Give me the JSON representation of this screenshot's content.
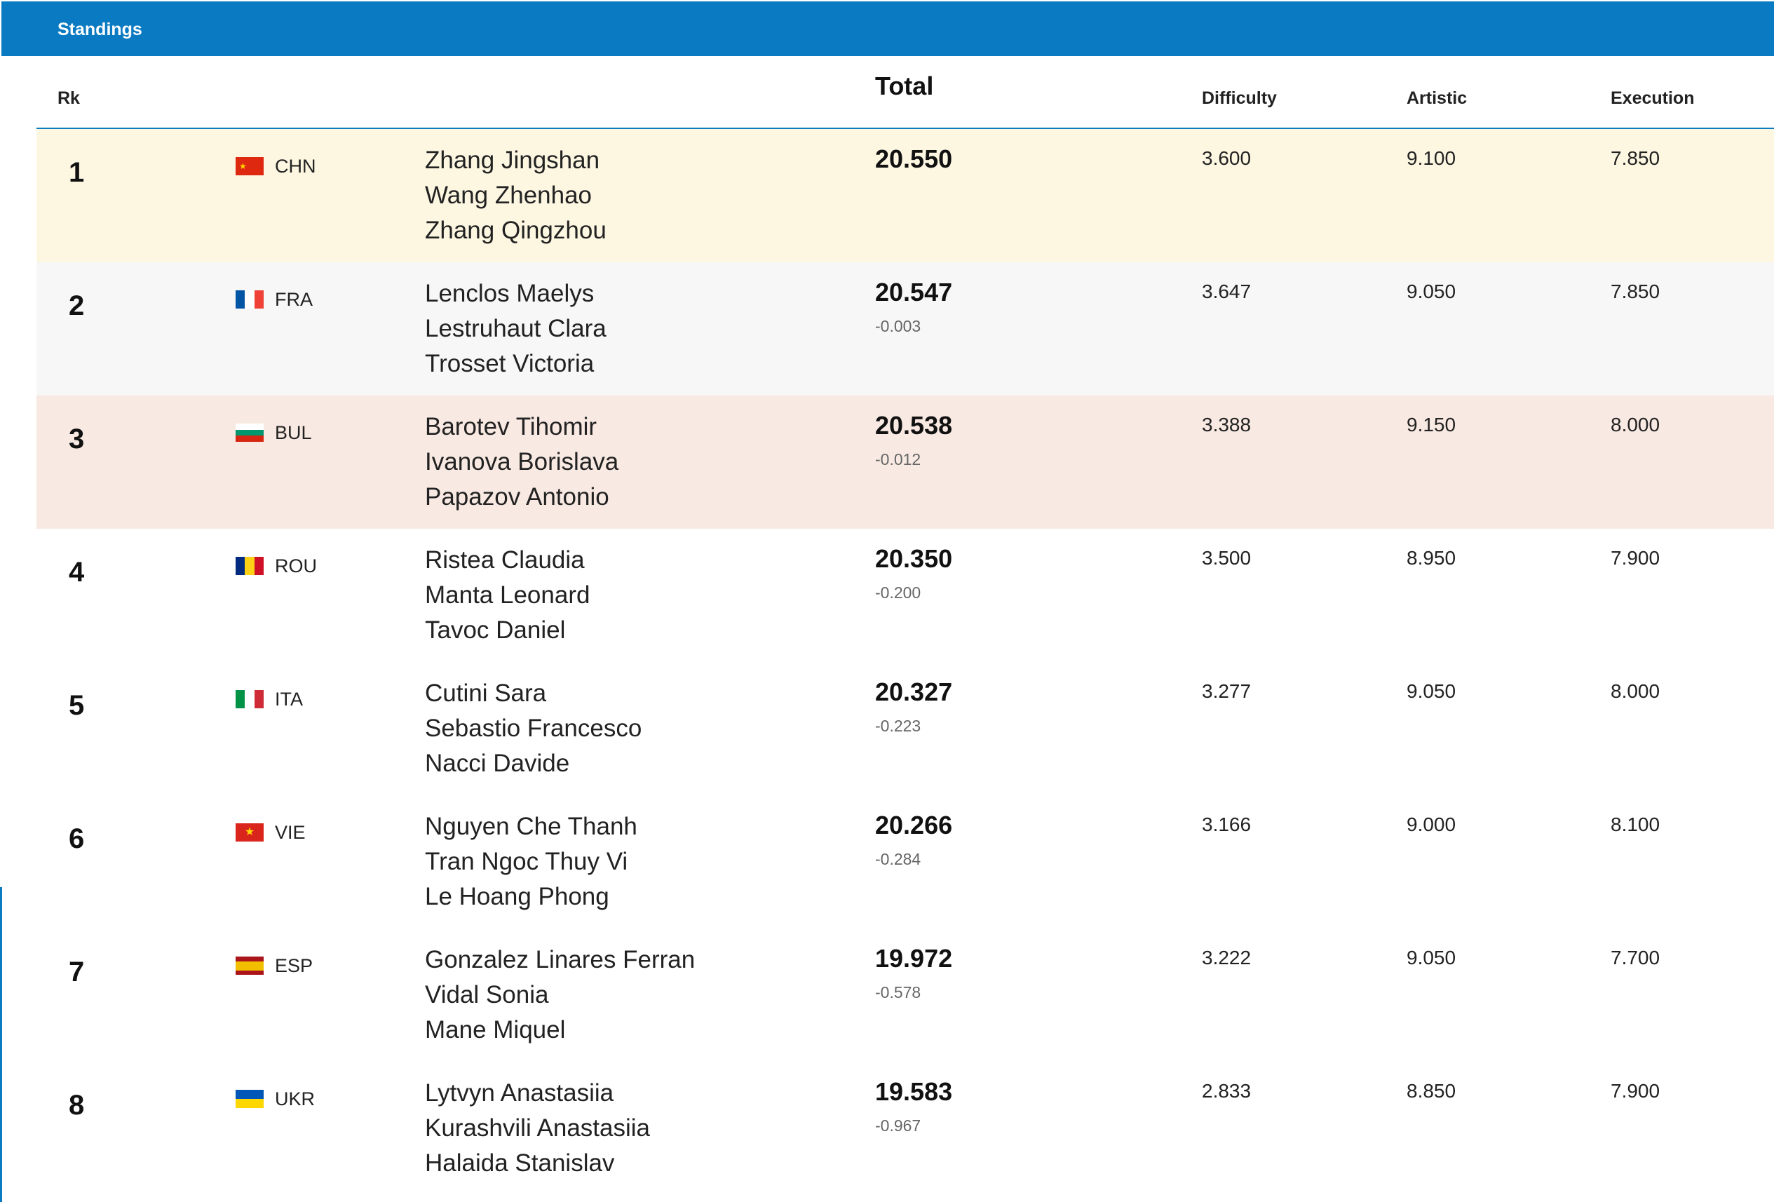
{
  "header": {
    "title": "Standings"
  },
  "columns": {
    "rank": "Rk",
    "total": "Total",
    "difficulty": "Difficulty",
    "artistic": "Artistic",
    "execution": "Execution"
  },
  "rows": [
    {
      "rank": "1",
      "noc": "CHN",
      "flag": "china-flag-icon",
      "athletes": [
        "Zhang Jingshan",
        "Wang Zhenhao",
        "Zhang Qingzhou"
      ],
      "total": "20.550",
      "gap": "",
      "difficulty": "3.600",
      "artistic": "9.100",
      "execution": "7.850"
    },
    {
      "rank": "2",
      "noc": "FRA",
      "flag": "france-flag-icon",
      "athletes": [
        "Lenclos Maelys",
        "Lestruhaut Clara",
        "Trosset Victoria"
      ],
      "total": "20.547",
      "gap": "-0.003",
      "difficulty": "3.647",
      "artistic": "9.050",
      "execution": "7.850"
    },
    {
      "rank": "3",
      "noc": "BUL",
      "flag": "bulgaria-flag-icon",
      "athletes": [
        "Barotev Tihomir",
        "Ivanova Borislava",
        "Papazov Antonio"
      ],
      "total": "20.538",
      "gap": "-0.012",
      "difficulty": "3.388",
      "artistic": "9.150",
      "execution": "8.000"
    },
    {
      "rank": "4",
      "noc": "ROU",
      "flag": "romania-flag-icon",
      "athletes": [
        "Ristea Claudia",
        "Manta Leonard",
        "Tavoc Daniel"
      ],
      "total": "20.350",
      "gap": "-0.200",
      "difficulty": "3.500",
      "artistic": "8.950",
      "execution": "7.900"
    },
    {
      "rank": "5",
      "noc": "ITA",
      "flag": "italy-flag-icon",
      "athletes": [
        "Cutini Sara",
        "Sebastio Francesco",
        "Nacci Davide"
      ],
      "total": "20.327",
      "gap": "-0.223",
      "difficulty": "3.277",
      "artistic": "9.050",
      "execution": "8.000"
    },
    {
      "rank": "6",
      "noc": "VIE",
      "flag": "vietnam-flag-icon",
      "athletes": [
        "Nguyen Che Thanh",
        "Tran Ngoc Thuy Vi",
        "Le Hoang Phong"
      ],
      "total": "20.266",
      "gap": "-0.284",
      "difficulty": "3.166",
      "artistic": "9.000",
      "execution": "8.100"
    },
    {
      "rank": "7",
      "noc": "ESP",
      "flag": "spain-flag-icon",
      "athletes": [
        "Gonzalez Linares Ferran",
        "Vidal Sonia",
        "Mane Miquel"
      ],
      "total": "19.972",
      "gap": "-0.578",
      "difficulty": "3.222",
      "artistic": "9.050",
      "execution": "7.700"
    },
    {
      "rank": "8",
      "noc": "UKR",
      "flag": "ukraine-flag-icon",
      "athletes": [
        "Lytvyn Anastasiia",
        "Kurashvili Anastasiia",
        "Halaida Stanislav"
      ],
      "total": "19.583",
      "gap": "-0.967",
      "difficulty": "2.833",
      "artistic": "8.850",
      "execution": "7.900"
    }
  ],
  "colors": {
    "accent": "#0a7bc2",
    "gold_row": "#fdf7e2",
    "silver_row": "#f7f7f7",
    "bronze_row": "#f8e9e2"
  }
}
